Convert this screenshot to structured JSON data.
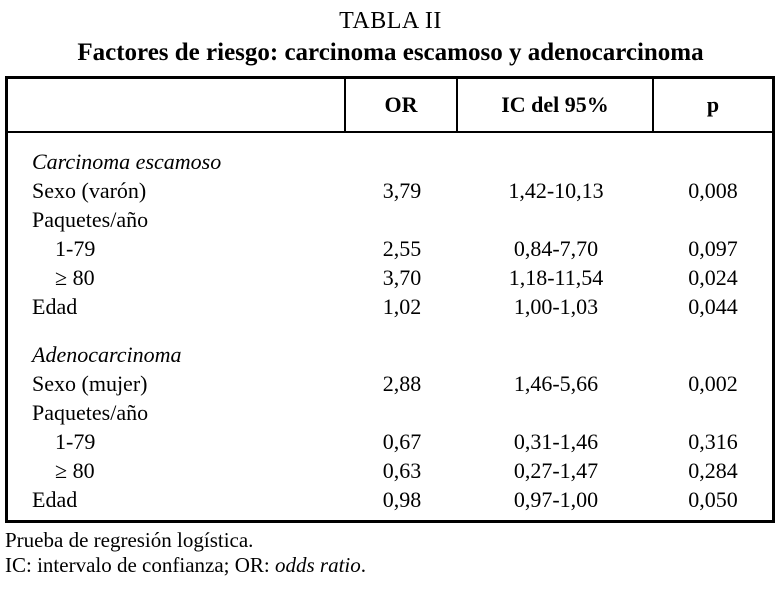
{
  "page": {
    "title": "TABLA II",
    "subtitle": "Factores de riesgo: carcinoma escamoso y adenocarcinoma"
  },
  "table": {
    "columns": {
      "factor": "",
      "or": "OR",
      "ic": "IC del 95%",
      "p": "p"
    },
    "rows": [
      {
        "label": "Carcinoma escamoso",
        "or": "",
        "ic": "",
        "p": ""
      },
      {
        "label": "Sexo (varón)",
        "or": "3,79",
        "ic": "1,42-10,13",
        "p": "0,008"
      },
      {
        "label": "Paquetes/año",
        "or": "",
        "ic": "",
        "p": ""
      },
      {
        "label": "1-79",
        "or": "2,55",
        "ic": "0,84-7,70",
        "p": "0,097"
      },
      {
        "label": "≥ 80",
        "or": "3,70",
        "ic": "1,18-11,54",
        "p": "0,024"
      },
      {
        "label": "Edad",
        "or": "1,02",
        "ic": "1,00-1,03",
        "p": "0,044"
      },
      {
        "label": "Adenocarcinoma",
        "or": "",
        "ic": "",
        "p": ""
      },
      {
        "label": "Sexo (mujer)",
        "or": "2,88",
        "ic": "1,46-5,66",
        "p": "0,002"
      },
      {
        "label": "Paquetes/año",
        "or": "",
        "ic": "",
        "p": ""
      },
      {
        "label": "1-79",
        "or": "0,67",
        "ic": "0,31-1,46",
        "p": "0,316"
      },
      {
        "label": "≥ 80",
        "or": "0,63",
        "ic": "0,27-1,47",
        "p": "0,284"
      },
      {
        "label": "Edad",
        "or": "0,98",
        "ic": "0,97-1,00",
        "p": "0,050"
      }
    ]
  },
  "footer": {
    "line1": "Prueba de regresión logística.",
    "line2_prefix": "IC: intervalo de confianza; OR: ",
    "line2_italic": "odds ratio",
    "line2_suffix": "."
  },
  "colors": {
    "text": "#000000",
    "background": "#ffffff",
    "border": "#000000"
  }
}
